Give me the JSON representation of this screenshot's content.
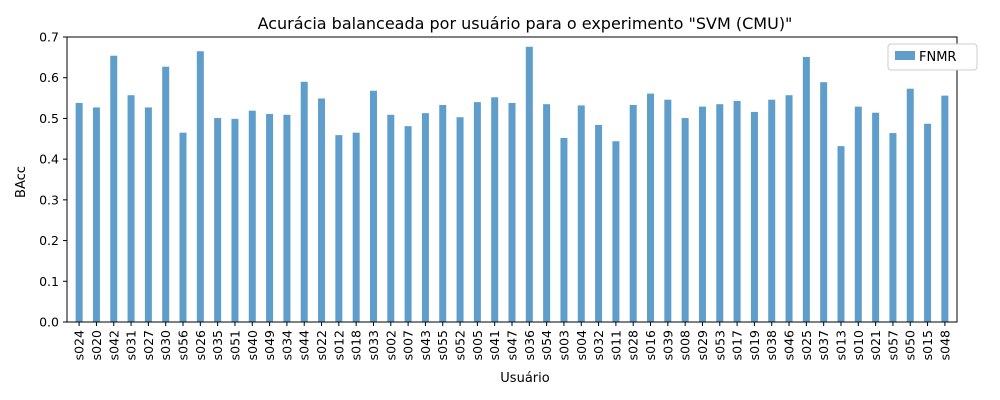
{
  "chart_data": {
    "type": "bar",
    "title": "Acurácia balanceada por usuário para o experimento \"SVM (CMU)\"",
    "xlabel": "Usuário",
    "ylabel": "BAcc",
    "ylim": [
      0,
      0.7
    ],
    "yticks": [
      "0.0",
      "0.1",
      "0.2",
      "0.3",
      "0.4",
      "0.5",
      "0.6",
      "0.7"
    ],
    "legend_position": "top-right",
    "grid": false,
    "categories": [
      "s024",
      "s020",
      "s042",
      "s031",
      "s027",
      "s030",
      "s056",
      "s026",
      "s035",
      "s051",
      "s040",
      "s049",
      "s034",
      "s044",
      "s022",
      "s012",
      "s018",
      "s033",
      "s002",
      "s007",
      "s043",
      "s055",
      "s052",
      "s005",
      "s041",
      "s047",
      "s036",
      "s054",
      "s003",
      "s004",
      "s032",
      "s011",
      "s028",
      "s016",
      "s039",
      "s008",
      "s029",
      "s053",
      "s017",
      "s019",
      "s038",
      "s046",
      "s025",
      "s037",
      "s013",
      "s010",
      "s021",
      "s057",
      "s050",
      "s015",
      "s048"
    ],
    "series": [
      {
        "name": "FNMR",
        "color": "#5f9ecb",
        "values": [
          0.538,
          0.527,
          0.654,
          0.557,
          0.527,
          0.627,
          0.465,
          0.665,
          0.501,
          0.499,
          0.519,
          0.511,
          0.509,
          0.59,
          0.549,
          0.459,
          0.465,
          0.568,
          0.509,
          0.481,
          0.513,
          0.533,
          0.503,
          0.54,
          0.552,
          0.538,
          0.676,
          0.535,
          0.452,
          0.532,
          0.484,
          0.444,
          0.533,
          0.561,
          0.546,
          0.501,
          0.529,
          0.535,
          0.543,
          0.516,
          0.546,
          0.557,
          0.651,
          0.589,
          0.432,
          0.529,
          0.514,
          0.464,
          0.573,
          0.487,
          0.556
        ]
      }
    ]
  }
}
